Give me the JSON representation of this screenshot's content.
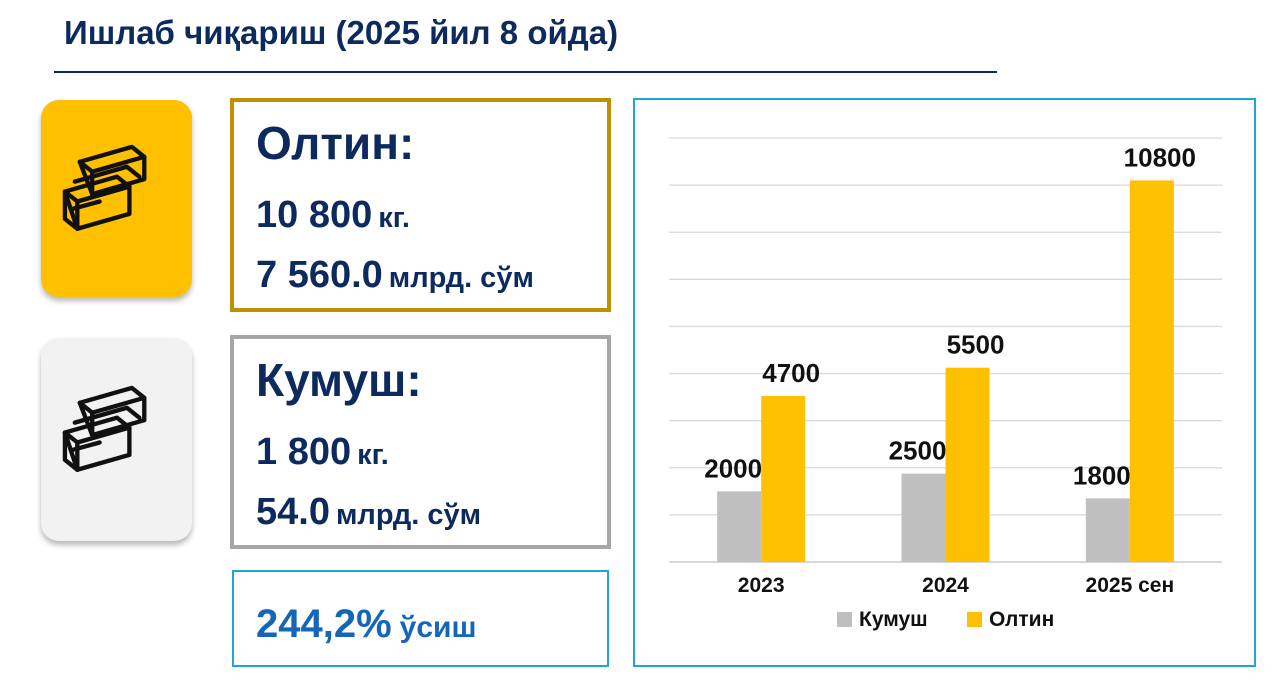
{
  "page": {
    "title": "Ишлаб чиқариш (2025 йил 8 ойда)"
  },
  "gold": {
    "icon": "gold-bars-icon",
    "name": "Олтин:",
    "qty_value": "10 800",
    "qty_unit": "кг.",
    "money_value": "7 560.0",
    "money_unit": "млрд. сўм",
    "colors": {
      "tile": "#ffc000",
      "border": "#bf9000"
    }
  },
  "silver": {
    "icon": "silver-bars-icon",
    "name": "Кумуш:",
    "qty_value": "1 800",
    "qty_unit": "кг.",
    "money_value": "54.0",
    "money_unit": "млрд. сўм",
    "colors": {
      "tile": "#f2f2f2",
      "border": "#a6a6a6"
    }
  },
  "growth": {
    "value": "244,2%",
    "label": "ўсиш",
    "color": "#1466b8"
  },
  "chart_data": {
    "type": "bar",
    "title": "",
    "xlabel": "",
    "ylabel": "",
    "categories": [
      "2023",
      "2024",
      "2025 сен"
    ],
    "series": [
      {
        "name": "Кумуш",
        "values": [
          2000,
          2500,
          1800
        ],
        "color": "#bfbfbf",
        "labels": [
          "2000",
          "2500",
          "1800"
        ]
      },
      {
        "name": "Олтин",
        "values": [
          4700,
          5500,
          10800
        ],
        "color": "#ffc000",
        "labels": [
          "4700",
          "5500",
          "10800"
        ]
      }
    ],
    "ylim": [
      0,
      12000
    ],
    "grid": true,
    "legend": "bottom"
  }
}
